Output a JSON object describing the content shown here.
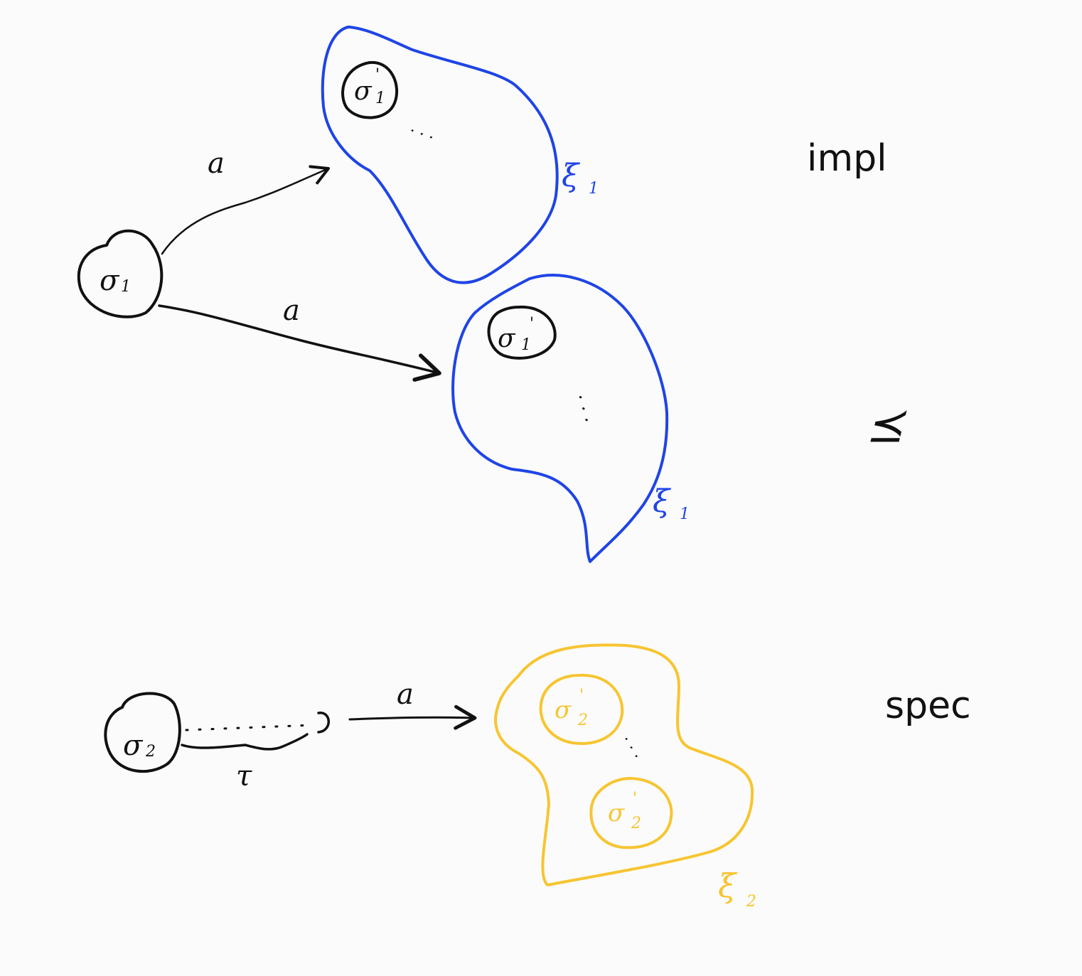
{
  "colors": {
    "ink": "#111111",
    "impl_region": "#1f44e6",
    "spec_region": "#f7c531",
    "background": "#fbfbfb"
  },
  "impl": {
    "side_label": "impl",
    "source_state": {
      "base": "σ",
      "sub": "1"
    },
    "top_region": {
      "state": {
        "base": "σ",
        "sup": "'",
        "sub": "1"
      },
      "ellipsis": "· · ·",
      "xi_label": {
        "base": "ξ",
        "sub": "1"
      }
    },
    "bottom_region": {
      "state": {
        "base": "σ",
        "sup": "'",
        "sub": "1"
      },
      "ellipsis": "· · ·",
      "xi_label": {
        "base": "ξ",
        "sub": "1"
      }
    },
    "arrow_top_label": "a",
    "arrow_bottom_label": "a"
  },
  "relation_symbol": "⪯",
  "spec": {
    "side_label": "spec",
    "source_state": {
      "base": "σ",
      "sub": "2"
    },
    "tau_label": "τ",
    "arrow_label": "a",
    "region": {
      "state_a": {
        "base": "σ",
        "sup": "'",
        "sub": "2"
      },
      "ellipsis": "· · ·",
      "state_b": {
        "base": "σ",
        "sup": "'",
        "sub": "2"
      },
      "xi_label": {
        "base": "ξ",
        "sub": "2"
      }
    }
  }
}
